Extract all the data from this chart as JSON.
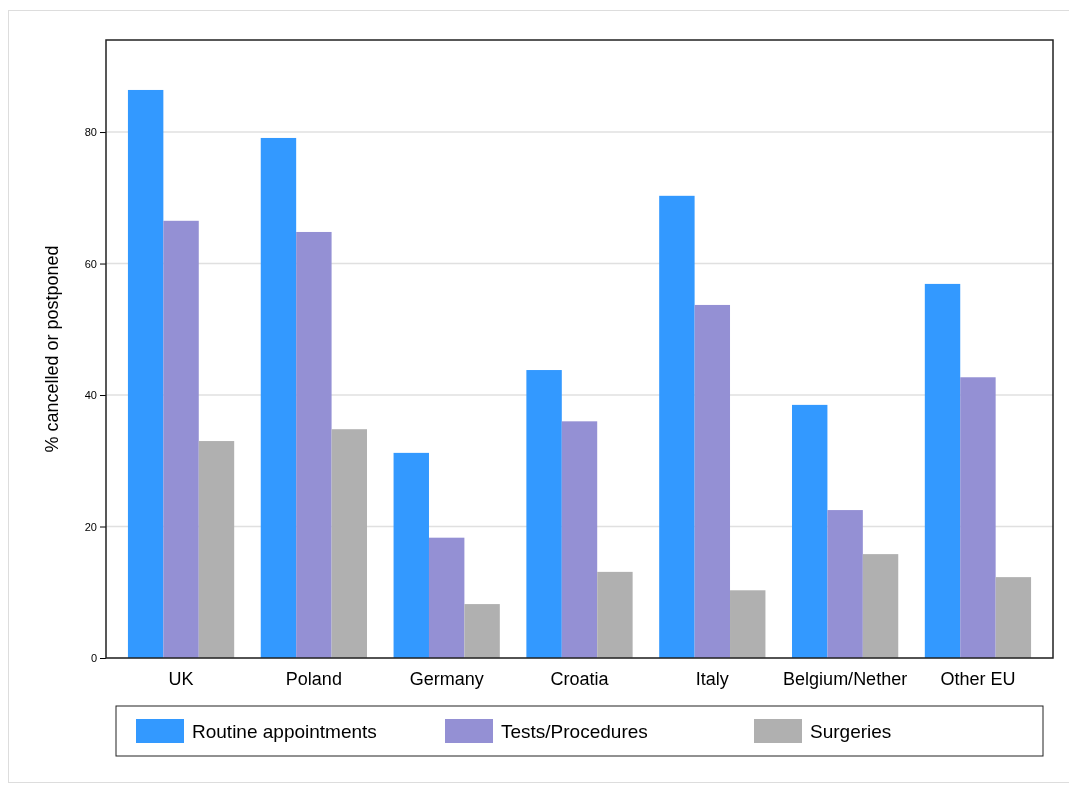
{
  "chart_data": {
    "type": "bar",
    "ylabel": "% cancelled or postponed",
    "categories": [
      "UK",
      "Poland",
      "Germany",
      "Croatia",
      "Italy",
      "Belgium/Nether",
      "Other EU"
    ],
    "series": [
      {
        "name": "Routine appointments",
        "color": "#3399ff",
        "values": [
          86.4,
          79.1,
          31.2,
          43.8,
          70.3,
          38.5,
          56.9
        ]
      },
      {
        "name": "Tests/Procedures",
        "color": "#9490d4",
        "values": [
          66.5,
          64.8,
          18.3,
          36.0,
          53.7,
          22.5,
          42.7
        ]
      },
      {
        "name": "Surgeries",
        "color": "#b0b0b0",
        "values": [
          33.0,
          34.8,
          8.2,
          13.1,
          10.3,
          15.8,
          12.3
        ]
      }
    ],
    "ylim": [
      0,
      94
    ],
    "yticks": [
      0,
      20,
      40,
      60,
      80
    ],
    "grid": "y",
    "legend": "bottom"
  }
}
